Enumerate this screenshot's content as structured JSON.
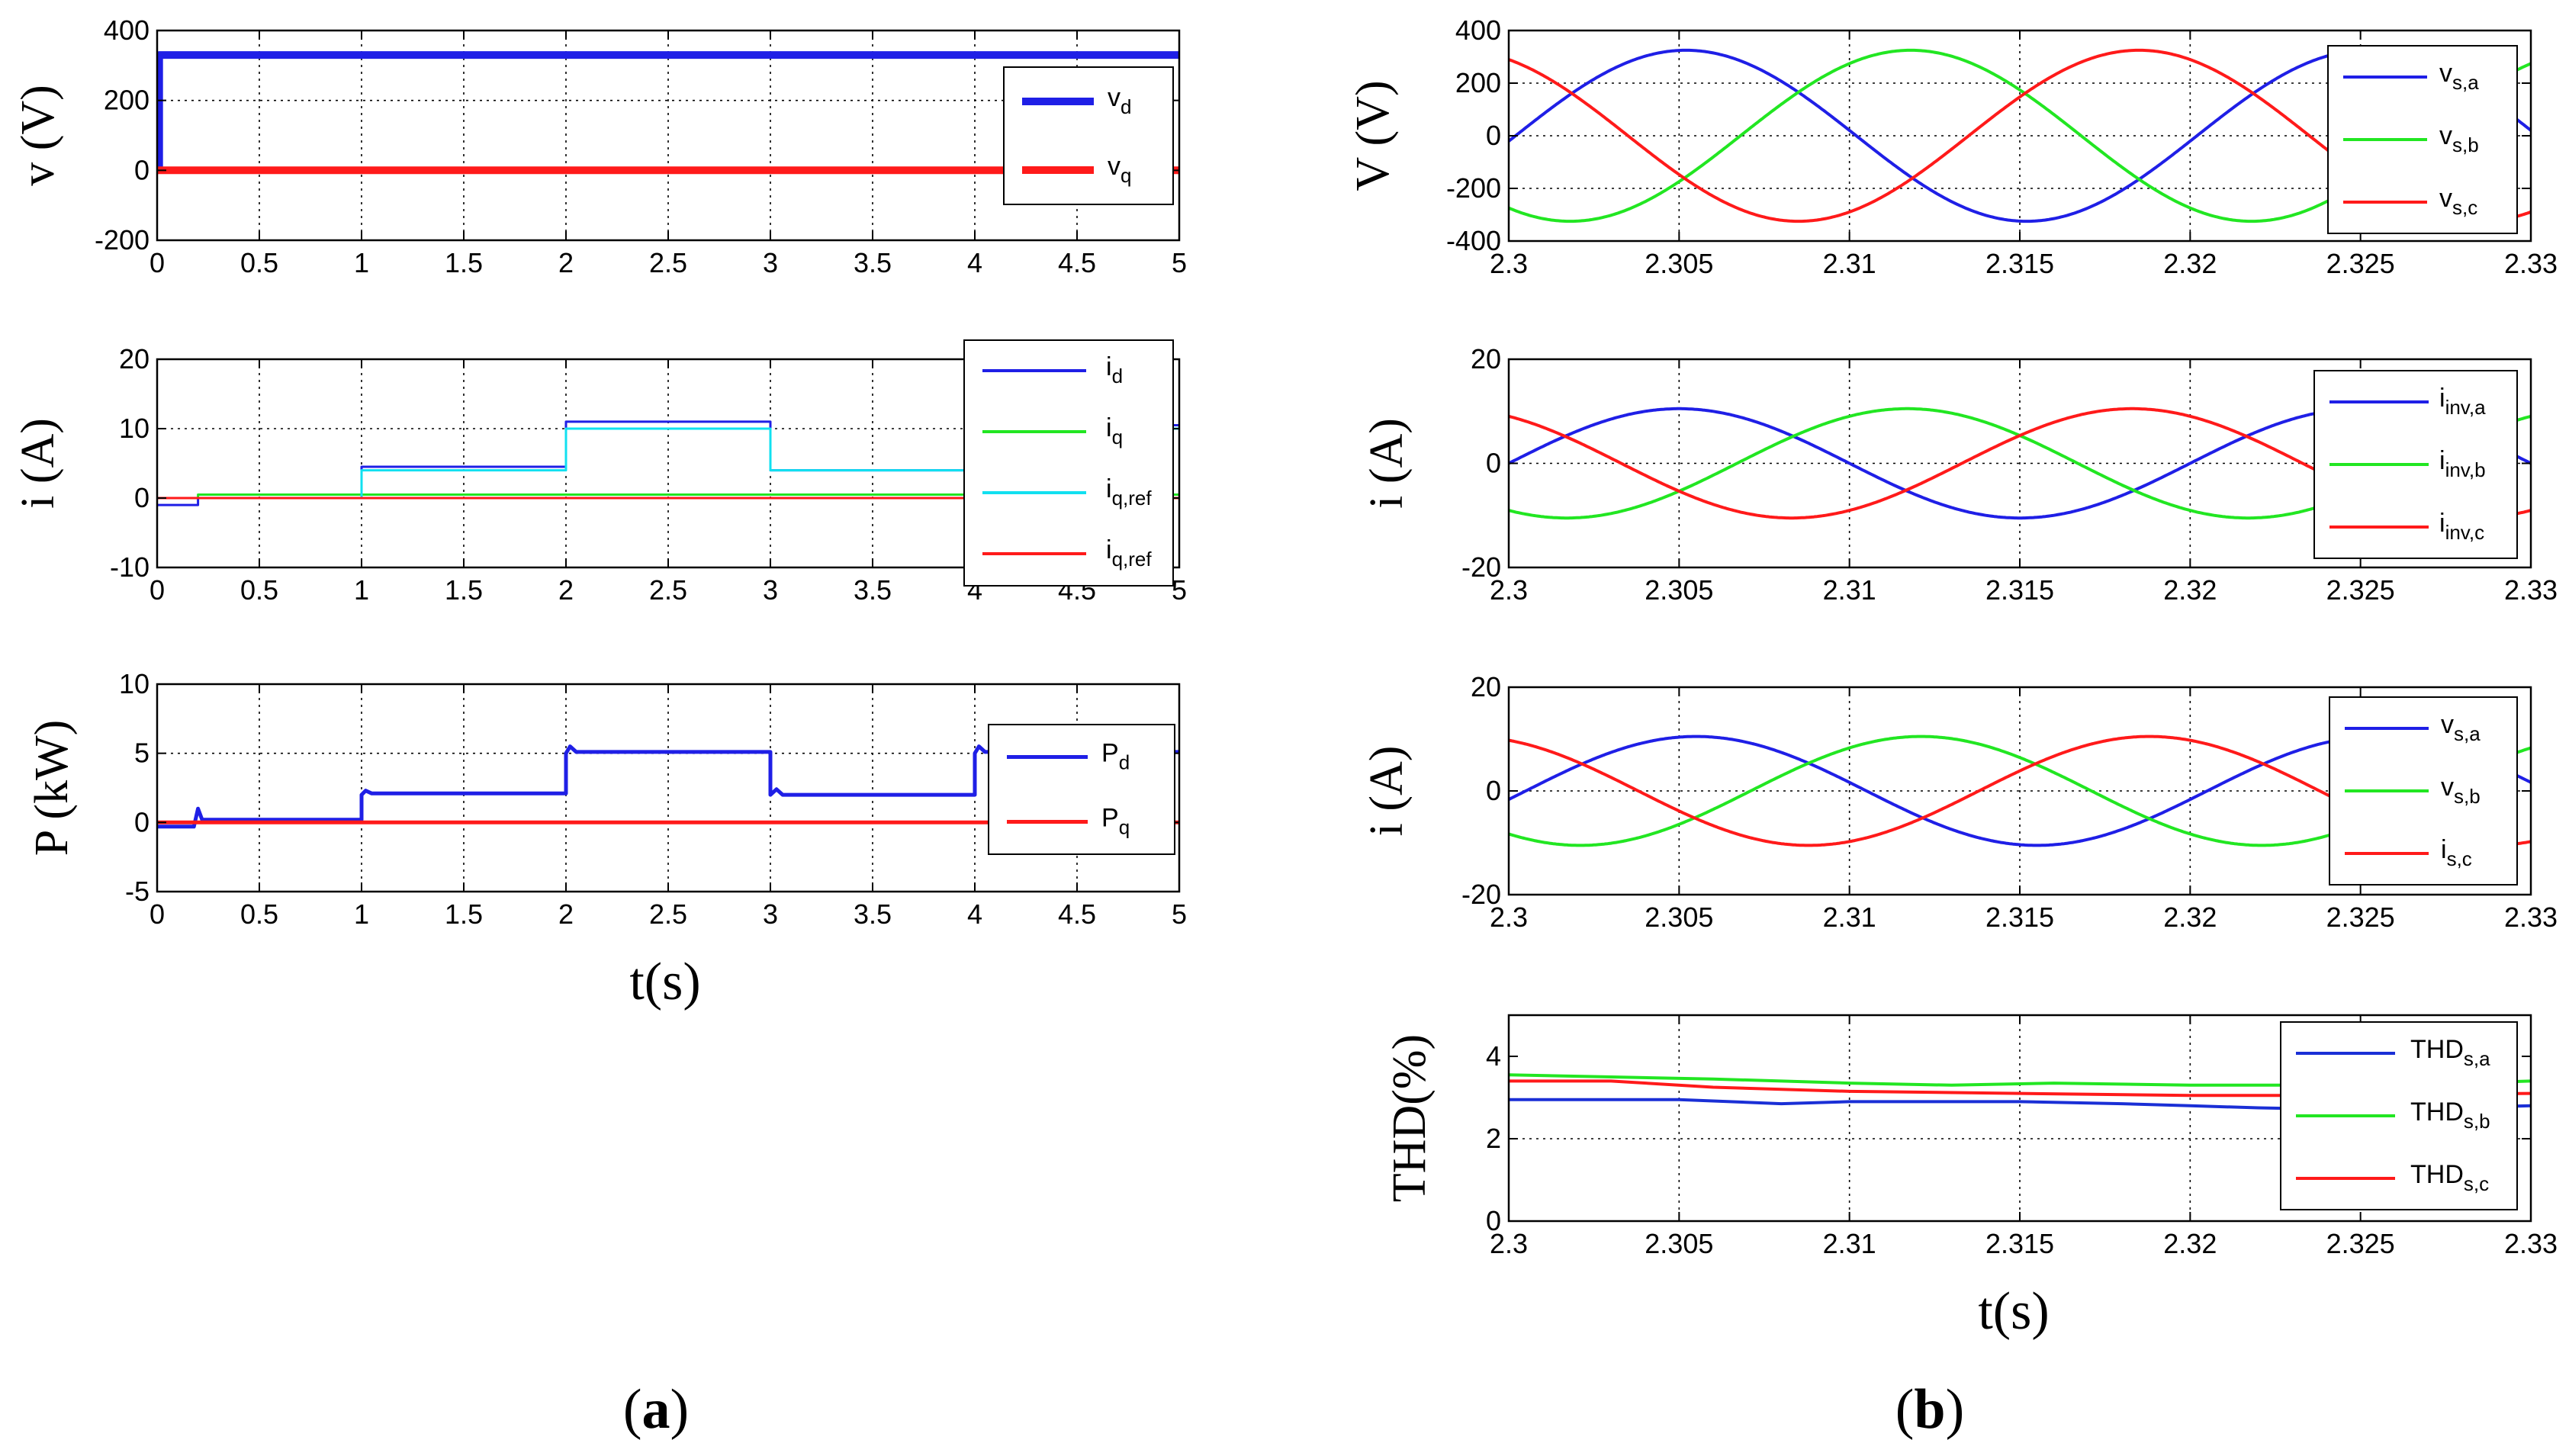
{
  "panels": {
    "a_label_prefix": "(",
    "a_label_letter": "a",
    "a_label_suffix": ")",
    "b_label_prefix": "(",
    "b_label_letter": "b",
    "b_label_suffix": ")",
    "a_xlabel": "t(s)",
    "b_xlabel": "t(s)"
  },
  "colors": {
    "blue": "#1f1fe6",
    "red": "#ff1a1a",
    "green": "#22e622",
    "cyan": "#11e0f0",
    "navy": "#1a2fd6"
  },
  "chart_data": [
    {
      "id": "a1",
      "type": "line",
      "ylabel": "v (V)",
      "xlim": [
        0,
        5
      ],
      "ylim": [
        -200,
        400
      ],
      "xticks": [
        0,
        0.5,
        1,
        1.5,
        2,
        2.5,
        3,
        3.5,
        4,
        4.5,
        5
      ],
      "xticklabels": [
        "0",
        "0.5",
        "1",
        "1.5",
        "2",
        "2.5",
        "3",
        "3.5",
        "4",
        "4.5",
        "5"
      ],
      "yticks": [
        -200,
        0,
        200,
        400
      ],
      "yticklabels": [
        "-200",
        "0",
        "200",
        "400"
      ],
      "grid": true,
      "legend": "right",
      "series": [
        {
          "name": "vd",
          "base": "v",
          "sub": "d",
          "color": "#1f1fe6",
          "width": 10,
          "x": [
            0,
            0,
            0.01,
            0.01,
            5
          ],
          "y": [
            0,
            10,
            10,
            330,
            330
          ]
        },
        {
          "name": "vq",
          "base": "v",
          "sub": "q",
          "color": "#ff1a1a",
          "width": 10,
          "x": [
            0,
            5
          ],
          "y": [
            0,
            0
          ]
        }
      ]
    },
    {
      "id": "a2",
      "type": "line",
      "ylabel": "i (A)",
      "xlim": [
        0,
        5
      ],
      "ylim": [
        -10,
        20
      ],
      "xticks": [
        0,
        0.5,
        1,
        1.5,
        2,
        2.5,
        3,
        3.5,
        4,
        4.5,
        5
      ],
      "xticklabels": [
        "0",
        "0.5",
        "1",
        "1.5",
        "2",
        "2.5",
        "3",
        "3.5",
        "4",
        "4.5",
        "5"
      ],
      "yticks": [
        -10,
        0,
        10,
        20
      ],
      "yticklabels": [
        "-10",
        "0",
        "10",
        "20"
      ],
      "grid": true,
      "legend": "right",
      "series": [
        {
          "name": "id",
          "base": "i",
          "sub": "d",
          "color": "#1f1fe6",
          "width": 3,
          "x": [
            0,
            0.2,
            0.2,
            1,
            1,
            2,
            2,
            3,
            3,
            4,
            4,
            5
          ],
          "y": [
            -1,
            -1,
            0,
            0,
            4.5,
            4.5,
            11,
            11,
            4,
            4,
            10.5,
            10.5
          ]
        },
        {
          "name": "iq",
          "base": "i",
          "sub": "q",
          "color": "#22e622",
          "width": 3,
          "x": [
            0,
            0.2,
            0.2,
            5
          ],
          "y": [
            0,
            0,
            0.5,
            0.5
          ]
        },
        {
          "name": "iq,ref",
          "base": "i",
          "sub": "q,ref",
          "color": "#11e0f0",
          "width": 3,
          "x": [
            0,
            1,
            1,
            2,
            2,
            3,
            3,
            4,
            4,
            5
          ],
          "y": [
            0,
            0,
            4,
            4,
            10,
            10,
            4,
            4,
            10,
            10
          ]
        },
        {
          "name": "iq,ref",
          "base": "i",
          "sub": "q,ref",
          "color": "#ff1a1a",
          "width": 3,
          "x": [
            0,
            5
          ],
          "y": [
            0,
            0
          ]
        }
      ]
    },
    {
      "id": "a3",
      "type": "line",
      "ylabel": "P (kW)",
      "xlim": [
        0,
        5
      ],
      "ylim": [
        -5,
        10
      ],
      "xticks": [
        0,
        0.5,
        1,
        1.5,
        2,
        2.5,
        3,
        3.5,
        4,
        4.5,
        5
      ],
      "xticklabels": [
        "0",
        "0.5",
        "1",
        "1.5",
        "2",
        "2.5",
        "3",
        "3.5",
        "4",
        "4.5",
        "5"
      ],
      "yticks": [
        -5,
        0,
        5,
        10
      ],
      "yticklabels": [
        "-5",
        "0",
        "5",
        "10"
      ],
      "grid": true,
      "legend": "right",
      "series": [
        {
          "name": "Pd",
          "base": "P",
          "sub": "d",
          "color": "#1f1fe6",
          "width": 5,
          "x": [
            0,
            0.18,
            0.2,
            0.22,
            0.3,
            1,
            1,
            1.02,
            1.05,
            2,
            2,
            2.02,
            2.05,
            3,
            3,
            3.03,
            3.06,
            4,
            4,
            4.02,
            4.05,
            5
          ],
          "y": [
            -0.3,
            -0.3,
            1,
            0.2,
            0.2,
            0.2,
            2,
            2.3,
            2.1,
            2.1,
            5,
            5.5,
            5.1,
            5.1,
            2,
            2.4,
            2,
            2,
            5,
            5.5,
            5.1,
            5.1
          ]
        },
        {
          "name": "Pq",
          "base": "P",
          "sub": "q",
          "color": "#ff1a1a",
          "width": 5,
          "x": [
            0,
            5
          ],
          "y": [
            0,
            0
          ]
        }
      ]
    },
    {
      "id": "b1",
      "type": "line",
      "ylabel": "V (V)",
      "xlim": [
        2.3,
        2.33
      ],
      "ylim": [
        -400,
        400
      ],
      "xticks": [
        2.3,
        2.305,
        2.31,
        2.315,
        2.32,
        2.325,
        2.33
      ],
      "xticklabels": [
        "2.3",
        "2.305",
        "2.31",
        "2.315",
        "2.32",
        "2.325",
        "2.33"
      ],
      "yticks": [
        -400,
        -200,
        0,
        200,
        400
      ],
      "yticklabels": [
        "-400",
        "-200",
        "0",
        "200",
        "400"
      ],
      "grid": true,
      "legend": "right",
      "series": [
        {
          "name": "vs,a",
          "base": "v",
          "sub": "s,a",
          "color": "#1f1fe6",
          "width": 4,
          "amp": 325,
          "peak": 2.3052
        },
        {
          "name": "vs,b",
          "base": "v",
          "sub": "s,b",
          "color": "#22e622",
          "width": 4,
          "amp": 325,
          "peak": 2.3118
        },
        {
          "name": "vs,c",
          "base": "v",
          "sub": "s,c",
          "color": "#ff1a1a",
          "width": 4,
          "amp": 325,
          "peak": 2.3185
        }
      ]
    },
    {
      "id": "b2",
      "type": "line",
      "ylabel": "i (A)",
      "xlim": [
        2.3,
        2.33
      ],
      "ylim": [
        -20,
        20
      ],
      "xticks": [
        2.3,
        2.305,
        2.31,
        2.315,
        2.32,
        2.325,
        2.33
      ],
      "xticklabels": [
        "2.3",
        "2.305",
        "2.31",
        "2.315",
        "2.32",
        "2.325",
        "2.33"
      ],
      "yticks": [
        -20,
        0,
        20
      ],
      "yticklabels": [
        "-20",
        "0",
        "20"
      ],
      "grid": true,
      "legend": "right",
      "series": [
        {
          "name": "iinv,a",
          "base": "i",
          "sub": "inv,a",
          "color": "#1f1fe6",
          "width": 4,
          "amp": 10.5,
          "peak": 2.305
        },
        {
          "name": "iinv,b",
          "base": "i",
          "sub": "inv,b",
          "color": "#22e622",
          "width": 4,
          "amp": 10.5,
          "peak": 2.3117
        },
        {
          "name": "iinv,c",
          "base": "i",
          "sub": "inv,c",
          "color": "#ff1a1a",
          "width": 4,
          "amp": 10.5,
          "peak": 2.3183
        }
      ]
    },
    {
      "id": "b3",
      "type": "line",
      "ylabel": "i (A)",
      "xlim": [
        2.3,
        2.33
      ],
      "ylim": [
        -20,
        20
      ],
      "xticks": [
        2.3,
        2.305,
        2.31,
        2.315,
        2.32,
        2.325,
        2.33
      ],
      "xticklabels": [
        "2.3",
        "2.305",
        "2.31",
        "2.315",
        "2.32",
        "2.325",
        "2.33"
      ],
      "yticks": [
        -20,
        0,
        20
      ],
      "yticklabels": [
        "-20",
        "0",
        "20"
      ],
      "grid": true,
      "legend": "right",
      "series": [
        {
          "name": "vs,a",
          "base": "v",
          "sub": "s,a",
          "color": "#1f1fe6",
          "width": 4,
          "amp": 10.5,
          "peak": 2.3055
        },
        {
          "name": "vs,b",
          "base": "v",
          "sub": "s,b",
          "color": "#22e622",
          "width": 4,
          "amp": 10.5,
          "peak": 2.3121
        },
        {
          "name": "is,c",
          "base": "i",
          "sub": "s,c",
          "color": "#ff1a1a",
          "width": 4,
          "amp": 10.5,
          "peak": 2.3188
        }
      ]
    },
    {
      "id": "b4",
      "type": "line",
      "ylabel": "THD(%)",
      "xlim": [
        2.3,
        2.33
      ],
      "ylim": [
        0,
        5
      ],
      "xticks": [
        2.3,
        2.305,
        2.31,
        2.315,
        2.32,
        2.325,
        2.33
      ],
      "xticklabels": [
        "2.3",
        "2.305",
        "2.31",
        "2.315",
        "2.32",
        "2.325",
        "2.33"
      ],
      "yticks": [
        0,
        2,
        4
      ],
      "yticklabels": [
        "0",
        "2",
        "4"
      ],
      "grid": true,
      "legend": "right",
      "series": [
        {
          "name": "THDs,a",
          "base": "THD",
          "sub": "s,a",
          "color": "#1a2fd6",
          "width": 4,
          "x": [
            2.3,
            2.305,
            2.308,
            2.31,
            2.315,
            2.318,
            2.32,
            2.322,
            2.325,
            2.33
          ],
          "y": [
            2.95,
            2.95,
            2.85,
            2.9,
            2.9,
            2.85,
            2.8,
            2.75,
            2.7,
            2.8
          ]
        },
        {
          "name": "THDs,b",
          "base": "THD",
          "sub": "s,b",
          "color": "#22e622",
          "width": 4,
          "x": [
            2.3,
            2.303,
            2.306,
            2.31,
            2.313,
            2.316,
            2.32,
            2.323,
            2.326,
            2.33
          ],
          "y": [
            3.55,
            3.5,
            3.45,
            3.35,
            3.3,
            3.35,
            3.3,
            3.3,
            3.3,
            3.4
          ]
        },
        {
          "name": "THDs,c",
          "base": "THD",
          "sub": "s,c",
          "color": "#ff1a1a",
          "width": 4,
          "x": [
            2.3,
            2.303,
            2.306,
            2.31,
            2.315,
            2.32,
            2.325,
            2.33
          ],
          "y": [
            3.4,
            3.4,
            3.25,
            3.15,
            3.1,
            3.05,
            3.05,
            3.1
          ]
        }
      ]
    }
  ]
}
